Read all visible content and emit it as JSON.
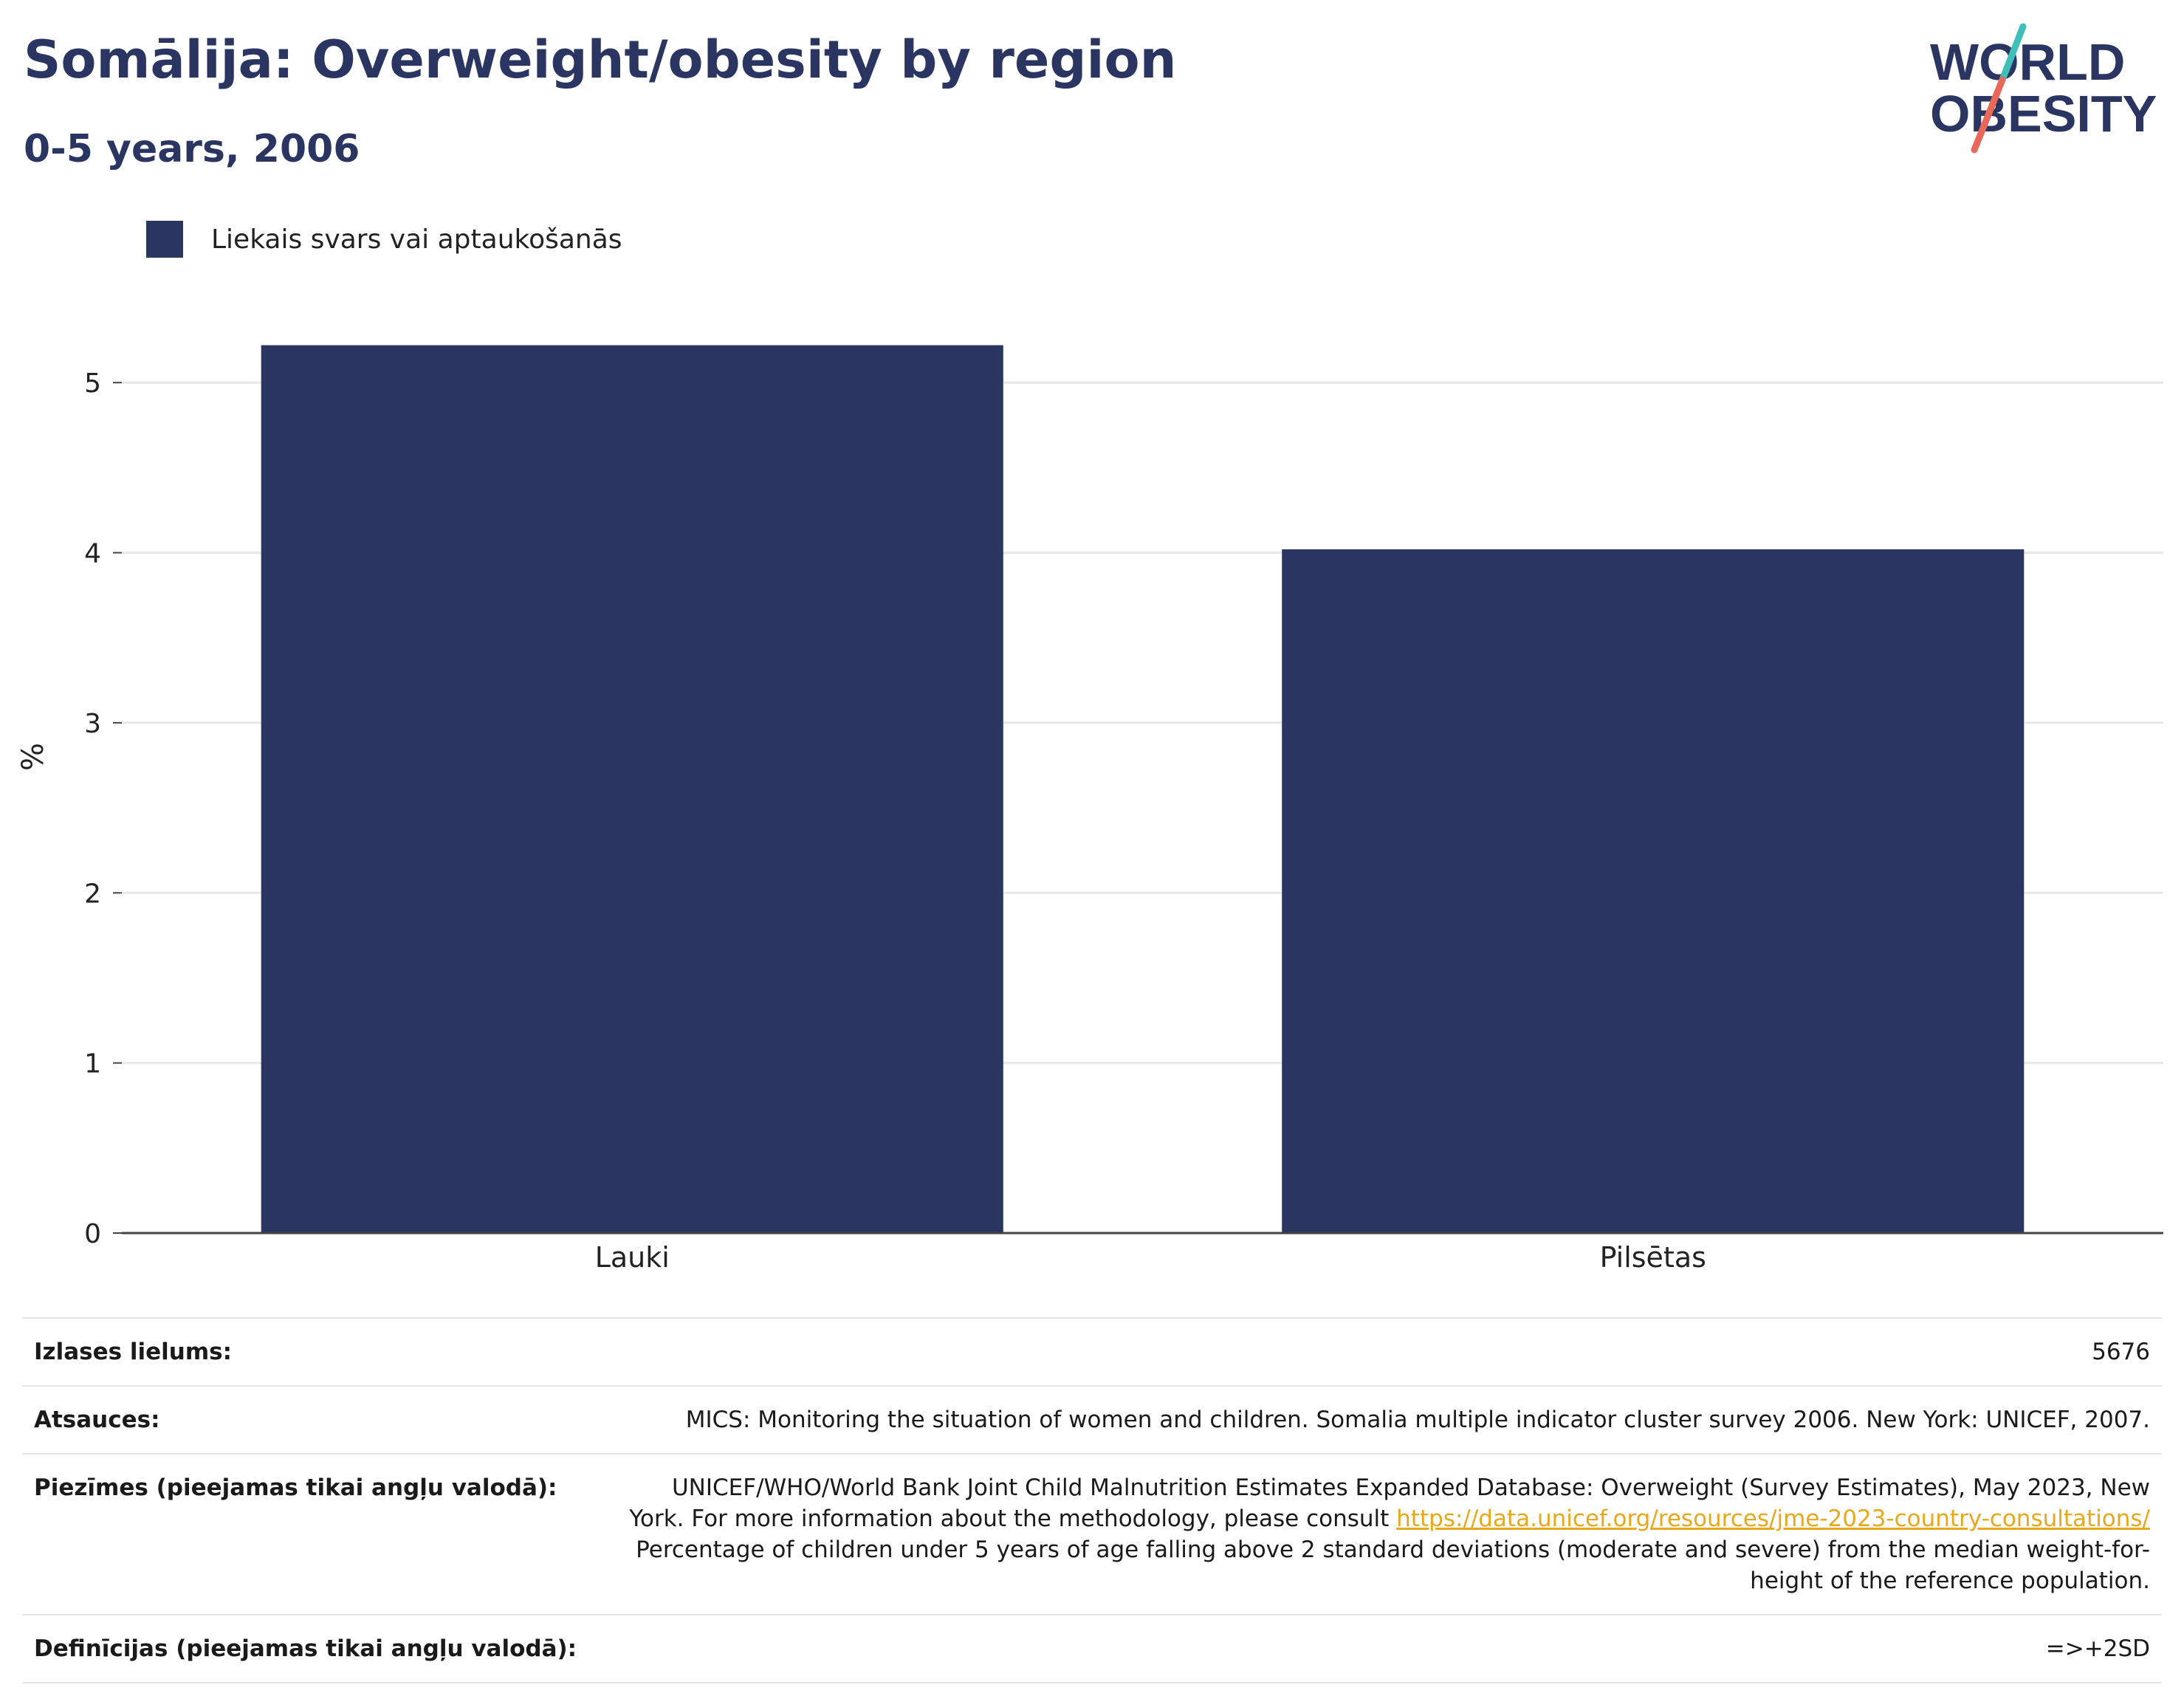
{
  "header": {
    "title": "Somālija: Overweight/obesity by region",
    "subtitle": "0-5 years, 2006"
  },
  "logo": {
    "line1": "WORLD",
    "line2": "OBESITY"
  },
  "colors": {
    "bar": "#2a3561",
    "title": "#2a3561",
    "link": "#e8a81b",
    "logo_teal": "#3fbfb8",
    "logo_coral": "#e8695a"
  },
  "chart_data": {
    "type": "bar",
    "categories": [
      "Lauki",
      "Pilsētas"
    ],
    "series": [
      {
        "name": "Liekais svars vai aptaukošanās",
        "values": [
          5.22,
          4.02
        ]
      }
    ],
    "ylabel": "%",
    "xlabel": "",
    "ylim": [
      0,
      5.6
    ],
    "yticks": [
      0,
      1,
      2,
      3,
      4,
      5
    ],
    "grid": true,
    "legend": "top-left"
  },
  "info": {
    "sample_label": "Izlases lielums:",
    "sample_value": "5676",
    "refs_label": "Atsauces:",
    "refs_value": "MICS: Monitoring the situation of women and children. Somalia multiple indicator cluster survey 2006. New York: UNICEF, 2007.",
    "notes_label": "Piezīmes (pieejamas tikai angļu valodā):",
    "notes_text_before": "UNICEF/WHO/World Bank Joint Child Malnutrition Estimates Expanded Database: Overweight (Survey Estimates), May 2023, New York. For more information about the methodology, please consult ",
    "notes_link": "https://data.unicef.org/resources/jme-2023-country-consultations/",
    "notes_text_after": "Percentage of children under 5 years of age falling above 2 standard deviations (moderate and severe) from the median weight-for-height of the reference population.",
    "defs_label": "Definīcijas (pieejamas tikai angļu valodā):",
    "defs_value": "=>+2SD"
  }
}
